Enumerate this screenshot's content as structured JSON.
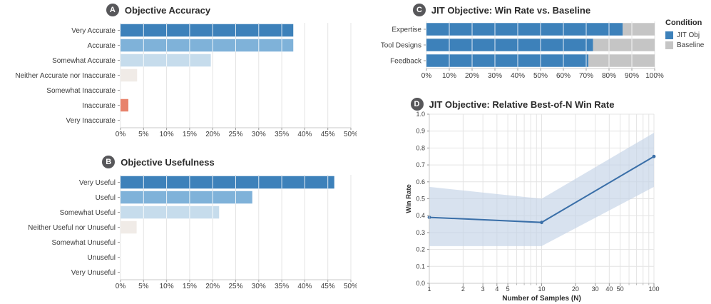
{
  "chart_data": [
    {
      "panel": "A",
      "type": "bar",
      "orientation": "horizontal",
      "title": "Objective Accuracy",
      "categories": [
        "Very Accurate",
        "Accurate",
        "Somewhat Accurate",
        "Neither Accurate nor Inaccurate",
        "Somewhat Inaccurate",
        "Inaccurate",
        "Very Inaccurate"
      ],
      "values": [
        37.5,
        37.5,
        19.6,
        3.6,
        0,
        1.7,
        0
      ],
      "value_unit": "percent",
      "bar_colors": [
        "#3d81ba",
        "#7fb2d9",
        "#c6dcec",
        "#f0ebe7",
        "#f7d5c4",
        "#e8836c",
        "#cc5b3d"
      ],
      "xlim": [
        0,
        50
      ],
      "xtick_labels": [
        "0%",
        "5%",
        "10%",
        "15%",
        "20%",
        "25%",
        "30%",
        "35%",
        "40%",
        "45%",
        "50%"
      ],
      "grid": true
    },
    {
      "panel": "B",
      "type": "bar",
      "orientation": "horizontal",
      "title": "Objective Usefulness",
      "categories": [
        "Very Useful",
        "Useful",
        "Somewhat Useful",
        "Neither Useful nor Unuseful",
        "Somewhat Unuseful",
        "Unuseful",
        "Very Unuseful"
      ],
      "values": [
        46.4,
        28.6,
        21.4,
        3.5,
        0,
        0,
        0
      ],
      "value_unit": "percent",
      "bar_colors": [
        "#3d81ba",
        "#7fb2d9",
        "#c6dcec",
        "#f0ebe7",
        "#f7d5c4",
        "#e8836c",
        "#cc5b3d"
      ],
      "xlim": [
        0,
        50
      ],
      "xtick_labels": [
        "0%",
        "5%",
        "10%",
        "15%",
        "20%",
        "25%",
        "30%",
        "35%",
        "40%",
        "45%",
        "50%"
      ],
      "grid": true
    },
    {
      "panel": "C",
      "type": "stacked_bar",
      "orientation": "horizontal",
      "title": "JIT Objective: Win Rate vs. Baseline",
      "categories": [
        "Expertise",
        "Tool Designs",
        "Feedback"
      ],
      "series": [
        {
          "name": "JIT Obj",
          "color": "#3d81ba",
          "values": [
            86,
            73,
            71
          ]
        },
        {
          "name": "Baseline",
          "color": "#c5c5c5",
          "values": [
            14,
            27,
            29
          ]
        }
      ],
      "legend_title": "Condition",
      "legend_position": "right",
      "xlim": [
        0,
        100
      ],
      "xtick_labels": [
        "0%",
        "10%",
        "20%",
        "30%",
        "40%",
        "50%",
        "60%",
        "70%",
        "80%",
        "90%",
        "100%"
      ],
      "grid": true
    },
    {
      "panel": "D",
      "type": "line",
      "title": "JIT Objective: Relative Best-of-N Win Rate",
      "xlabel": "Number of Samples (N)",
      "ylabel": "Win Rate",
      "xscale": "log",
      "xlim": [
        1,
        100
      ],
      "ylim": [
        0,
        1
      ],
      "x": [
        1,
        10,
        100
      ],
      "y": [
        0.39,
        0.36,
        0.75
      ],
      "band_lower": [
        0.22,
        0.22,
        0.57
      ],
      "band_upper": [
        0.57,
        0.5,
        0.89
      ],
      "xtick_labels": [
        "1",
        "2",
        "3",
        "4",
        "5",
        "10",
        "20",
        "30",
        "40",
        "50",
        "100"
      ],
      "xticks_minor": [
        6,
        7,
        8,
        9,
        60,
        70,
        80,
        90
      ],
      "ytick_labels": [
        "0.0",
        "0.1",
        "0.2",
        "0.3",
        "0.4",
        "0.5",
        "0.6",
        "0.7",
        "0.8",
        "0.9",
        "1.0"
      ],
      "line_color": "#3a6fa8",
      "band_color": "#c3d2e6",
      "marker": "circle",
      "grid": true
    }
  ]
}
